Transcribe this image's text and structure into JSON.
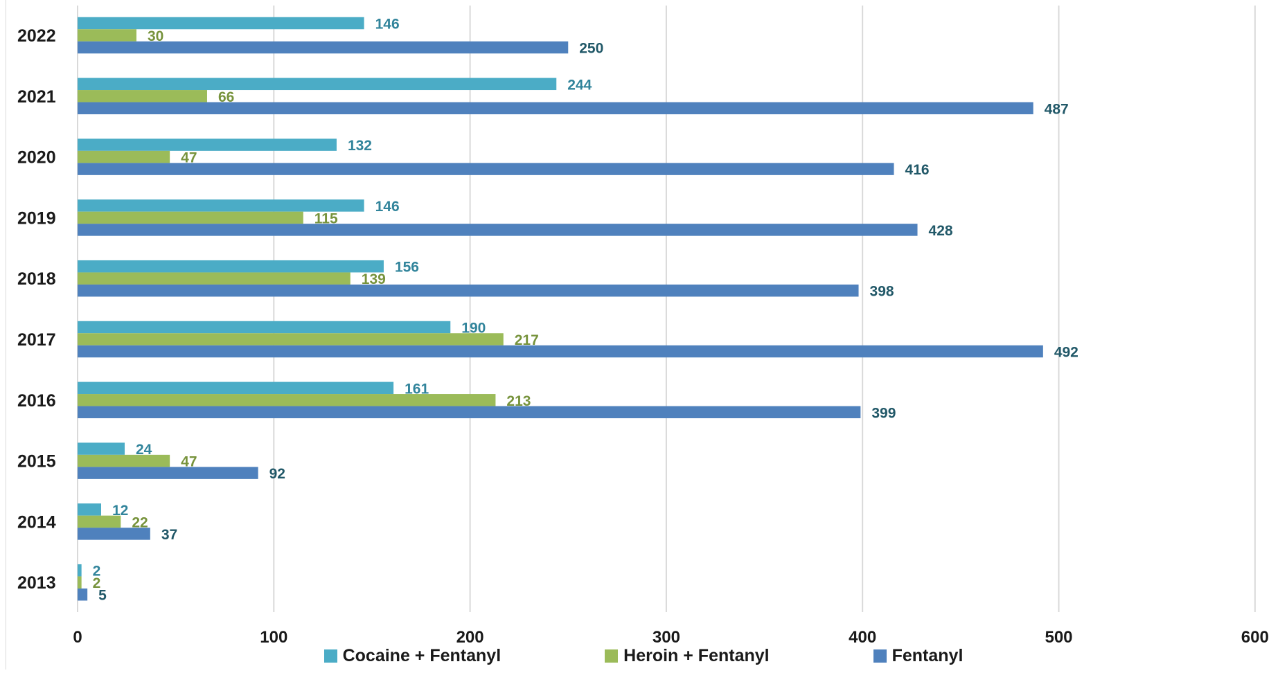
{
  "chart_data": {
    "type": "bar",
    "orientation": "horizontal",
    "categories": [
      "2013",
      "2014",
      "2015",
      "2016",
      "2017",
      "2018",
      "2019",
      "2020",
      "2021",
      "2022"
    ],
    "series": [
      {
        "name": "Cocaine + Fentanyl",
        "color": "#4bacc6",
        "label_color": "#31849b",
        "values": [
          2,
          12,
          24,
          161,
          190,
          156,
          146,
          132,
          244,
          146
        ]
      },
      {
        "name": "Heroin + Fentanyl",
        "color": "#9bbb59",
        "label_color": "#77933c",
        "values": [
          2,
          22,
          47,
          213,
          217,
          139,
          115,
          47,
          66,
          30
        ]
      },
      {
        "name": "Fentanyl",
        "color": "#4f81bd",
        "label_color": "#215868",
        "values": [
          5,
          37,
          92,
          399,
          492,
          398,
          428,
          416,
          487,
          250
        ]
      }
    ],
    "xlim": [
      0,
      600
    ],
    "xticks": [
      "0",
      "100",
      "200",
      "300",
      "400",
      "500",
      "600"
    ],
    "grid": "vertical",
    "legend_position": "bottom",
    "data_labels": true
  }
}
